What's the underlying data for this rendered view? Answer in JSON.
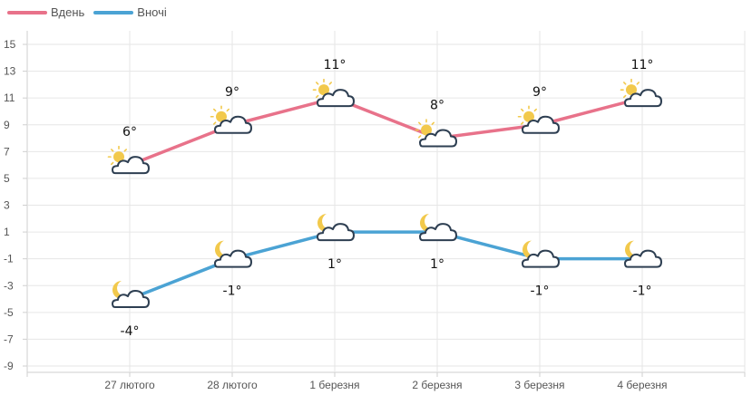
{
  "chart_data": {
    "type": "line",
    "categories": [
      "27 лютого",
      "28 лютого",
      "1 березня",
      "2 березня",
      "3 березня",
      "4 березня"
    ],
    "series": [
      {
        "name": "Вдень",
        "color": "#e8728a",
        "values": [
          6,
          9,
          11,
          8,
          9,
          11
        ],
        "labels": [
          "6°",
          "9°",
          "11°",
          "8°",
          "9°",
          "11°"
        ],
        "icon": "sun-behind-cloud-icon"
      },
      {
        "name": "Вночі",
        "color": "#4ba3d4",
        "values": [
          -4,
          -1,
          1,
          1,
          -1,
          -1
        ],
        "labels": [
          "-4°",
          "-1°",
          "1°",
          "1°",
          "-1°",
          "-1°"
        ],
        "icon": "moon-behind-cloud-icon"
      }
    ],
    "yticks": [
      15,
      13,
      11,
      9,
      7,
      5,
      3,
      1,
      -1,
      -3,
      -5,
      -7,
      -9
    ],
    "ylim": [
      -9,
      16
    ],
    "grid": true,
    "legend_position": "top-left"
  }
}
